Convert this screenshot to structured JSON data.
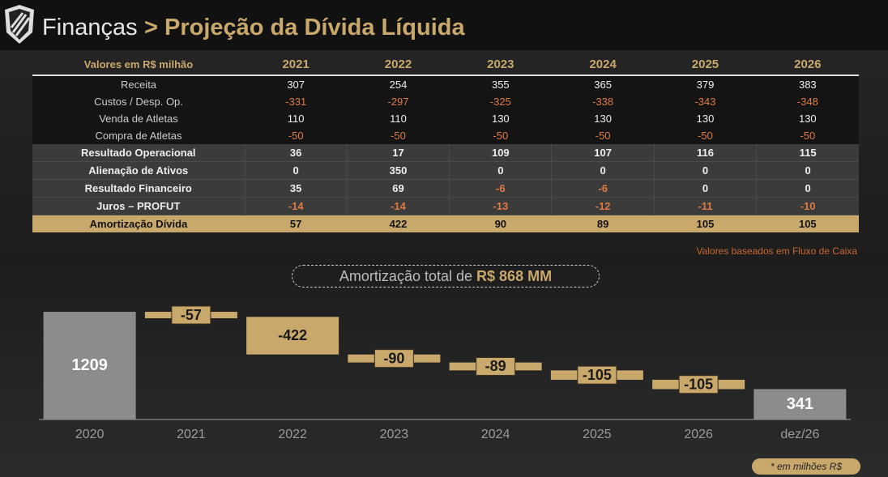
{
  "header": {
    "title": "Finanças",
    "subtitle": "> Projeção da Dívida Líquida"
  },
  "table": {
    "corner": "Valores em R$ milhão",
    "columns": [
      "2021",
      "2022",
      "2023",
      "2024",
      "2025",
      "2026"
    ],
    "rows": [
      {
        "label": "Receita",
        "values": [
          307,
          254,
          355,
          365,
          379,
          383
        ]
      },
      {
        "label": "Custos / Desp. Op.",
        "values": [
          -331,
          -297,
          -325,
          -338,
          -343,
          -348
        ]
      },
      {
        "label": "Venda de Atletas",
        "values": [
          110,
          110,
          130,
          130,
          130,
          130
        ]
      },
      {
        "label": "Compra de Atletas",
        "values": [
          -50,
          -50,
          -50,
          -50,
          -50,
          -50
        ]
      },
      {
        "label": "Resultado Operacional",
        "values": [
          36,
          17,
          109,
          107,
          116,
          115
        ]
      },
      {
        "label": "Alienação de Ativos",
        "values": [
          0,
          350,
          0,
          0,
          0,
          0
        ]
      },
      {
        "label": "Resultado Financeiro",
        "values": [
          35,
          69,
          -6,
          -6,
          0,
          0
        ]
      },
      {
        "label": "Juros – PROFUT",
        "values": [
          -14,
          -14,
          -13,
          -12,
          -11,
          -10
        ]
      },
      {
        "label": "Amortização Dívida",
        "values": [
          57,
          422,
          90,
          89,
          105,
          105
        ]
      }
    ],
    "note": "Valores baseados em Fluxo de Caixa"
  },
  "callout": {
    "text": "Amortização total de",
    "highlight": "R$ 868 MM"
  },
  "chart_data": {
    "type": "waterfall",
    "categories": [
      "2020",
      "2021",
      "2022",
      "2023",
      "2024",
      "2025",
      "2026",
      "dez/26"
    ],
    "values": [
      1209,
      -57,
      -422,
      -90,
      -89,
      -105,
      -105,
      341
    ],
    "total_color": "#8c8c8c",
    "delta_color": "#c9a86c"
  },
  "footnote": "* em milhões R$"
}
